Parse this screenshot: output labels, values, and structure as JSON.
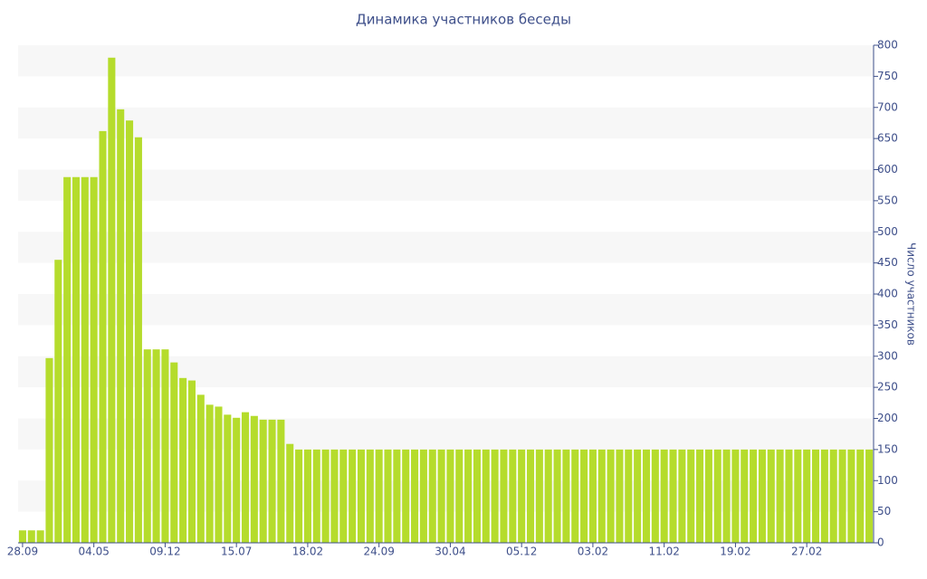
{
  "chart_data": {
    "type": "bar",
    "title": "Динамика участников беседы",
    "y_axis_label": "Число участников",
    "categories": [
      "28.09",
      null,
      null,
      null,
      null,
      null,
      null,
      null,
      "04.05",
      null,
      null,
      null,
      null,
      null,
      null,
      null,
      "09.12",
      null,
      null,
      null,
      null,
      null,
      null,
      null,
      "15.07",
      null,
      null,
      null,
      null,
      null,
      null,
      null,
      "18.02",
      null,
      null,
      null,
      null,
      null,
      null,
      null,
      "24.09",
      null,
      null,
      null,
      null,
      null,
      null,
      null,
      "30.04",
      null,
      null,
      null,
      null,
      null,
      null,
      null,
      "05.12",
      null,
      null,
      null,
      null,
      null,
      null,
      null,
      "03.02",
      null,
      null,
      null,
      null,
      null,
      null,
      null,
      "11.02",
      null,
      null,
      null,
      null,
      null,
      null,
      null,
      "19.02",
      null,
      null,
      null,
      null,
      null,
      null,
      null,
      "27.02",
      null,
      null,
      null,
      null,
      null,
      null,
      null
    ],
    "values": [
      20,
      20,
      20,
      297,
      455,
      588,
      588,
      588,
      588,
      662,
      780,
      697,
      679,
      652,
      311,
      311,
      311,
      290,
      265,
      261,
      238,
      222,
      219,
      206,
      201,
      210,
      204,
      198,
      198,
      198,
      159,
      150,
      150,
      150,
      150,
      150,
      150,
      150,
      150,
      150,
      150,
      150,
      150,
      150,
      150,
      150,
      150,
      150,
      150,
      150,
      150,
      150,
      150,
      150,
      150,
      150,
      150,
      150,
      150,
      150,
      150,
      150,
      150,
      150,
      150,
      150,
      150,
      150,
      150,
      150,
      150,
      150,
      150,
      150,
      150,
      150,
      150,
      150,
      150,
      150,
      150,
      150,
      150,
      150,
      150,
      150,
      150,
      150,
      150,
      150,
      150,
      150,
      150,
      150,
      150,
      150
    ],
    "color": "#b5dc2c",
    "ylim": [
      0,
      800
    ],
    "yticks": [
      0,
      50,
      100,
      150,
      200,
      250,
      300,
      350,
      400,
      450,
      500,
      550,
      600,
      650,
      700,
      750,
      800
    ],
    "grid": "bands",
    "y_axis_side": "right"
  }
}
